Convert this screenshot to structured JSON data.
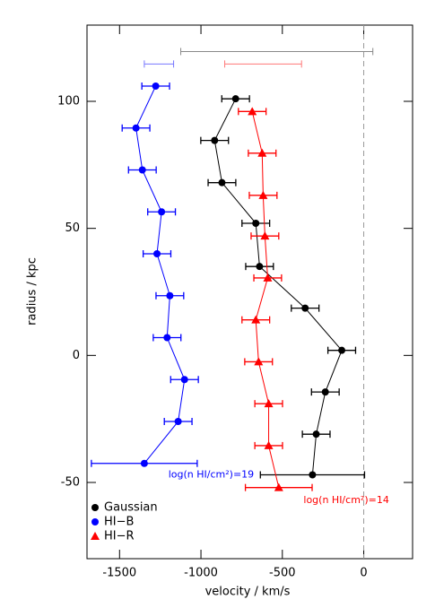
{
  "chart_data": {
    "type": "scatter",
    "xlabel": "velocity / km/s",
    "ylabel": "radius / kpc",
    "xlim": [
      -1700,
      300
    ],
    "ylim": [
      -80,
      130
    ],
    "xticks": [
      -1500,
      -1000,
      -500,
      0
    ],
    "yticks": [
      -50,
      0,
      50,
      100
    ],
    "vline": 0,
    "legend": "lower left",
    "series": [
      {
        "name": "Gaussian",
        "color": "#000000",
        "marker": "circle",
        "x": [
          -787,
          -916,
          -871,
          -663,
          -640,
          -360,
          -135,
          -236,
          -292,
          -315
        ],
        "y": [
          101,
          84.6,
          68,
          52,
          35,
          18.6,
          2,
          -14.4,
          -31,
          -47
        ],
        "xerr": [
          85,
          85,
          85,
          85,
          85,
          85,
          85,
          85,
          85,
          320
        ]
      },
      {
        "name": "HI−B",
        "color": "#0000ff",
        "marker": "circle",
        "x": [
          -1278,
          -1399,
          -1360,
          -1242,
          -1270,
          -1191,
          -1208,
          -1101,
          -1140,
          -1348
        ],
        "y": [
          106,
          89.5,
          73,
          56.5,
          40,
          23.5,
          7,
          -9.5,
          -26,
          -42.5
        ],
        "xerr": [
          85,
          85,
          85,
          85,
          85,
          85,
          85,
          85,
          85,
          325
        ]
      },
      {
        "name": "HI−R",
        "color": "#ff0000",
        "marker": "triangle",
        "x": [
          -685,
          -624,
          -618,
          -607,
          -590,
          -663,
          -646,
          -584,
          -584,
          -522
        ],
        "y": [
          96,
          79.6,
          63,
          47,
          30.5,
          14,
          -2.5,
          -19,
          -35.5,
          -52
        ],
        "xerr": [
          85,
          85,
          85,
          85,
          85,
          85,
          85,
          85,
          85,
          205
        ]
      }
    ],
    "reference_bars": [
      {
        "x": -534,
        "y": 119.6,
        "xerr": 590,
        "color": "#888888"
      },
      {
        "x": -1258,
        "y": 114.7,
        "xerr": 90,
        "color": "#7777ff"
      },
      {
        "x": -618,
        "y": 114.7,
        "xerr": 236,
        "color": "#ff7777"
      }
    ],
    "annotations": [
      {
        "text": "log(n HI/cm²)=19",
        "x": -1200,
        "y": -47,
        "color": "#0000ff"
      },
      {
        "text": "log(n HI/cm²)=14",
        "x": -370,
        "y": -57,
        "color": "#ff0000"
      }
    ]
  }
}
